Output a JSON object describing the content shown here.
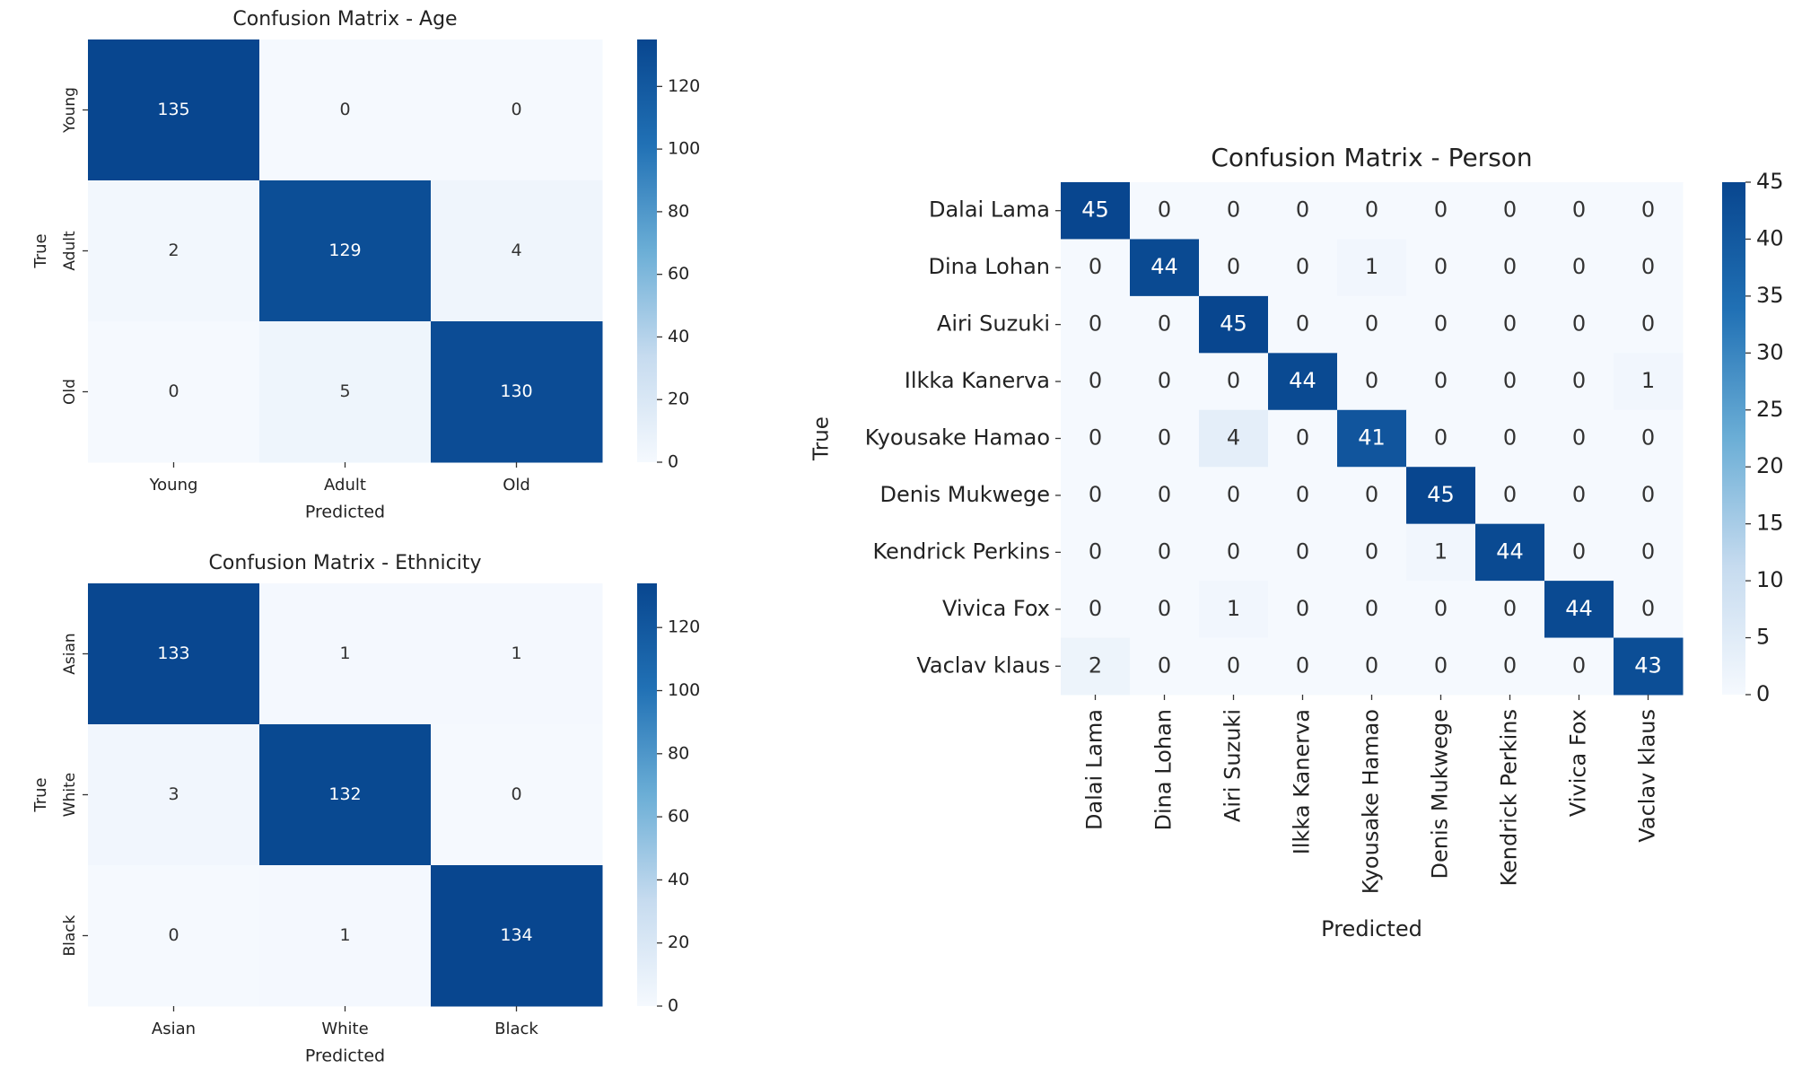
{
  "chart_data": [
    {
      "type": "heatmap",
      "title": "Confusion Matrix - Age",
      "xlabel": "Predicted",
      "ylabel": "True",
      "x_categories": [
        "Young",
        "Adult",
        "Old"
      ],
      "y_categories": [
        "Young",
        "Adult",
        "Old"
      ],
      "values": [
        [
          135,
          0,
          0
        ],
        [
          2,
          129,
          4
        ],
        [
          0,
          5,
          130
        ]
      ],
      "clim": [
        0,
        135
      ],
      "cticks": [
        0,
        20,
        40,
        60,
        80,
        100,
        120
      ],
      "colors": [
        "#f5f9fe",
        "#c6dbef",
        "#6baed6",
        "#2171b5",
        "#08468f"
      ]
    },
    {
      "type": "heatmap",
      "title": "Confusion Matrix - Ethnicity",
      "xlabel": "Predicted",
      "ylabel": "True",
      "x_categories": [
        "Asian",
        "White",
        "Black"
      ],
      "y_categories": [
        "Asian",
        "White",
        "Black"
      ],
      "values": [
        [
          133,
          1,
          1
        ],
        [
          3,
          132,
          0
        ],
        [
          0,
          1,
          134
        ]
      ],
      "clim": [
        0,
        134
      ],
      "cticks": [
        0,
        20,
        40,
        60,
        80,
        100,
        120
      ],
      "colors": [
        "#f5f9fe",
        "#c6dbef",
        "#6baed6",
        "#2171b5",
        "#08468f"
      ]
    },
    {
      "type": "heatmap",
      "title": "Confusion Matrix - Person",
      "xlabel": "Predicted",
      "ylabel": "True",
      "x_categories": [
        "Dalai Lama",
        "Dina Lohan",
        "Airi Suzuki",
        "Ilkka Kanerva",
        "Kyousake Hamao",
        "Denis Mukwege",
        "Kendrick Perkins",
        "Vivica Fox",
        "Vaclav klaus"
      ],
      "y_categories": [
        "Dalai Lama",
        "Dina Lohan",
        "Airi Suzuki",
        "Ilkka Kanerva",
        "Kyousake Hamao",
        "Denis Mukwege",
        "Kendrick Perkins",
        "Vivica Fox",
        "Vaclav klaus"
      ],
      "values": [
        [
          45,
          0,
          0,
          0,
          0,
          0,
          0,
          0,
          0
        ],
        [
          0,
          44,
          0,
          0,
          1,
          0,
          0,
          0,
          0
        ],
        [
          0,
          0,
          45,
          0,
          0,
          0,
          0,
          0,
          0
        ],
        [
          0,
          0,
          0,
          44,
          0,
          0,
          0,
          0,
          1
        ],
        [
          0,
          0,
          4,
          0,
          41,
          0,
          0,
          0,
          0
        ],
        [
          0,
          0,
          0,
          0,
          0,
          45,
          0,
          0,
          0
        ],
        [
          0,
          0,
          0,
          0,
          0,
          1,
          44,
          0,
          0
        ],
        [
          0,
          0,
          1,
          0,
          0,
          0,
          0,
          44,
          0
        ],
        [
          2,
          0,
          0,
          0,
          0,
          0,
          0,
          0,
          43
        ]
      ],
      "clim": [
        0,
        45
      ],
      "cticks": [
        0,
        5,
        10,
        15,
        20,
        25,
        30,
        35,
        40,
        45
      ],
      "colors": [
        "#f5f9fe",
        "#c6dbef",
        "#6baed6",
        "#2171b5",
        "#08468f"
      ]
    }
  ]
}
